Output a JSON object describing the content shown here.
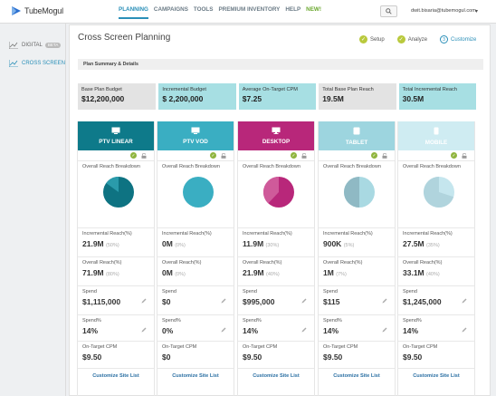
{
  "brand": {
    "name": "TubeMogul"
  },
  "nav": [
    {
      "label": "PLANNING",
      "active": true
    },
    {
      "label": "CAMPAIGNS"
    },
    {
      "label": "TOOLS"
    },
    {
      "label": "PREMIUM INVENTORY"
    },
    {
      "label": "HELP"
    },
    {
      "label": "NEW!",
      "new": true
    }
  ],
  "user": {
    "email": "dwit.bisaria@tubemogul.com"
  },
  "sidebar": [
    {
      "label": "DIGITAL",
      "badge": "BETA",
      "icon": "line-chart-icon"
    },
    {
      "label": "CROSS SCREEN",
      "icon": "line-chart-icon",
      "active": true
    }
  ],
  "page": {
    "title": "Cross Screen Planning"
  },
  "steps": [
    {
      "label": "Setup",
      "state": "done"
    },
    {
      "label": "Analyze",
      "state": "done"
    },
    {
      "label": "Customize",
      "state": "current",
      "num": "3"
    }
  ],
  "summary_header": "Plan Summary & Details",
  "summary": [
    {
      "label": "Base Plan Budget",
      "value": "$12,200,000",
      "style": "grey"
    },
    {
      "label": "Incremental Budget",
      "value": "$ 2,200,000",
      "style": "teal"
    },
    {
      "label": "Average On-Target CPM",
      "value": "$7.25",
      "style": "teal"
    },
    {
      "label": "Total Base Plan Reach",
      "value": "19.5M",
      "style": "grey"
    },
    {
      "label": "Total Incremental Reach",
      "value": "30.5M",
      "style": "teal"
    }
  ],
  "labels": {
    "overall_reach_breakdown": "Overall Reach Breakdown",
    "incremental_reach": "Incremental Reach(%)",
    "overall_reach": "Overall Reach(%)",
    "spend": "Spend",
    "spend_pct": "Spend%",
    "on_target_cpm": "On-Target CPM",
    "customize_site_list": "Customize Site List"
  },
  "columns": [
    {
      "name": "PTV LINEAR",
      "icon": "tv-icon",
      "head_color": "#0e7a8a",
      "pie_main": "#0e7382",
      "pie_slice": "#2a9bab",
      "pie_fraction": 0.85,
      "incremental_reach": "21.9M",
      "incremental_reach_pct": "(50%)",
      "overall_reach": "71.9M",
      "overall_reach_pct": "(80%)",
      "spend": "$1,115,000",
      "spend_pct": "14%",
      "cpm": "$9.50"
    },
    {
      "name": "PTV VOD",
      "icon": "tv-icon",
      "head_color": "#3aaec2",
      "pie_main": "#3aaec2",
      "pie_slice": "#3aaec2",
      "pie_fraction": 1.0,
      "incremental_reach": "0M",
      "incremental_reach_pct": "(0%)",
      "overall_reach": "0M",
      "overall_reach_pct": "(0%)",
      "spend": "$0",
      "spend_pct": "0%",
      "cpm": "$0"
    },
    {
      "name": "DESKTOP",
      "icon": "monitor-icon",
      "head_color": "#b8277a",
      "pie_main": "#b8277a",
      "pie_slice": "#cf5a9a",
      "pie_fraction": 0.62,
      "incremental_reach": "11.9M",
      "incremental_reach_pct": "(30%)",
      "overall_reach": "21.9M",
      "overall_reach_pct": "(40%)",
      "spend": "$995,000",
      "spend_pct": "14%",
      "cpm": "$9.50"
    },
    {
      "name": "TABLET",
      "icon": "tablet-icon",
      "head_color": "#9dd5df",
      "pie_main": "#a9d9e2",
      "pie_slice": "#8fb9c4",
      "pie_fraction": 0.5,
      "incremental_reach": "900K",
      "incremental_reach_pct": "(5%)",
      "overall_reach": "1M",
      "overall_reach_pct": "(7%)",
      "spend": "$115",
      "spend_pct": "14%",
      "cpm": "$9.50"
    },
    {
      "name": "MOBILE",
      "icon": "mobile-icon",
      "head_color": "#cfecf2",
      "pie_main": "#c5e6ee",
      "pie_slice": "#b0d4dd",
      "pie_fraction": 0.3,
      "incremental_reach": "27.5M",
      "incremental_reach_pct": "(35%)",
      "overall_reach": "33.1M",
      "overall_reach_pct": "(40%)",
      "spend": "$1,245,000",
      "spend_pct": "14%",
      "cpm": "$9.50"
    }
  ]
}
